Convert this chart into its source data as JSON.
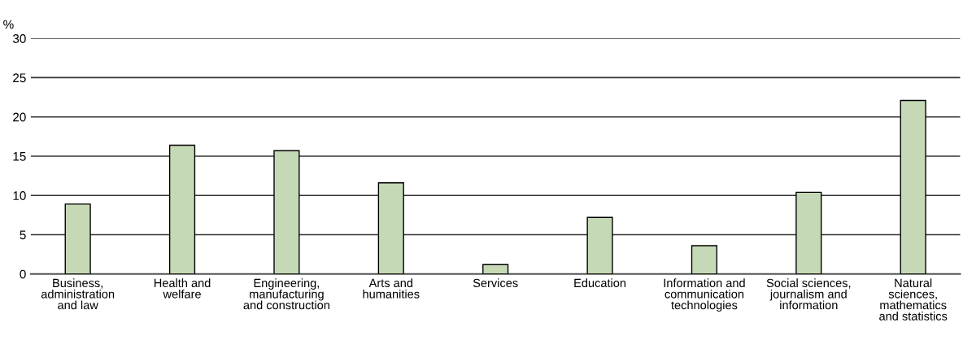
{
  "chart_data": {
    "type": "bar",
    "ylabel": "%",
    "categories": [
      "Business,\nadministration\nand law",
      "Health and\nwelfare",
      "Engineering,\nmanufacturing\nand construction",
      "Arts and\nhumanities",
      "Services",
      "Education",
      "Information and\ncommunication\ntechnologies",
      "Social sciences,\njournalism and\ninformation",
      "Natural\nsciences,\nmathematics\nand statistics"
    ],
    "values": [
      8.9,
      16.4,
      15.7,
      11.6,
      1.2,
      7.2,
      3.6,
      10.4,
      22.1
    ],
    "color": "#c6d9b6",
    "ylim": [
      0,
      30
    ],
    "yticks": [
      0,
      5,
      10,
      15,
      20,
      25,
      30
    ],
    "grid": "y",
    "legend": false
  }
}
